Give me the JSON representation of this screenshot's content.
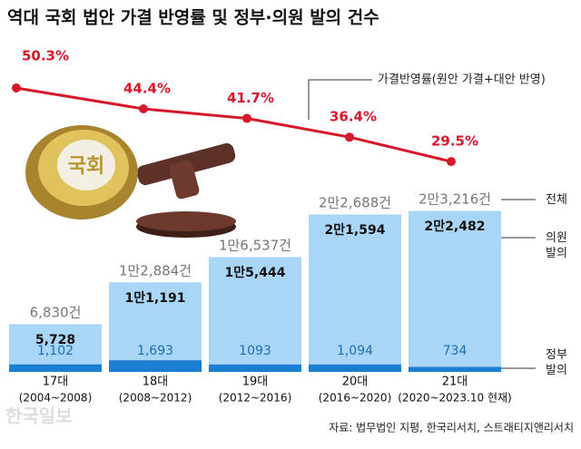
{
  "chart_data": {
    "type": "bar-line",
    "title": "역대 국회 법안 가결 반영률 및 정부·의원 발의 건수",
    "categories": [
      "17대",
      "18대",
      "19대",
      "20대",
      "21대"
    ],
    "periods": [
      "(2004~2008)",
      "(2008~2012)",
      "(2012~2016)",
      "(2016~2020)",
      "(2020~2023.10 현재)"
    ],
    "series": [
      {
        "name": "정부 발의",
        "color": "#1b7fd1",
        "values": [
          1102,
          1693,
          1093,
          1094,
          734
        ],
        "value_labels": [
          "1,102",
          "1,693",
          "1093",
          "1,094",
          "734"
        ]
      },
      {
        "name": "의원 발의",
        "color": "#a9d5f6",
        "values": [
          5728,
          11191,
          15444,
          21594,
          22482
        ],
        "value_labels": [
          "5,728",
          "1만1,191",
          "1만5,444",
          "2만1,594",
          "2만2,482"
        ]
      }
    ],
    "totals": {
      "name": "전체",
      "values": [
        6830,
        12884,
        16537,
        22688,
        23216
      ],
      "value_labels": [
        "6,830건",
        "1만2,884건",
        "1만6,537건",
        "2만2,688건",
        "2만3,216건"
      ]
    },
    "line": {
      "name": "가결반영률(원안 가결+대안 반영)",
      "color": "#d7182a",
      "values": [
        50.3,
        44.4,
        41.7,
        36.4,
        29.5
      ],
      "value_labels": [
        "50.3%",
        "44.4%",
        "41.7%",
        "36.4%",
        "29.5%"
      ]
    },
    "source": "자료: 법무법인 지평, 한국리서치, 스트래티지앤리서치",
    "watermark": "한국일보"
  }
}
